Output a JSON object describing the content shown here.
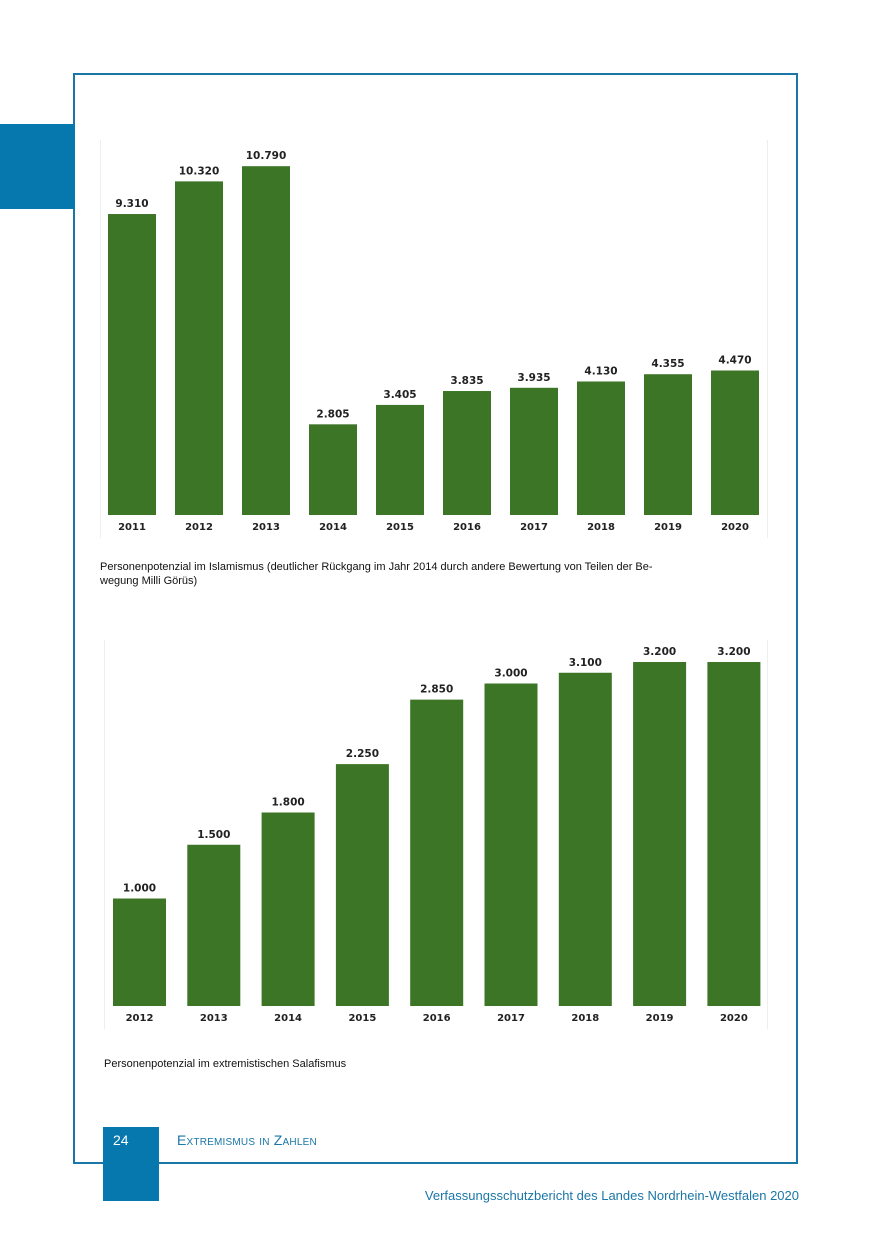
{
  "page": {
    "number": "24",
    "section_title": "Extremismus in Zahlen",
    "footer": "Verfassungsschutzbericht des Landes Nordrhein-Westfalen 2020"
  },
  "colors": {
    "bar": "#3c7526",
    "frame": "#1976a6",
    "accent_block": "#0778ae"
  },
  "chart_data": [
    {
      "type": "bar",
      "categories": [
        "2011",
        "2012",
        "2013",
        "2014",
        "2015",
        "2016",
        "2017",
        "2018",
        "2019",
        "2020"
      ],
      "values": [
        9310,
        10320,
        10790,
        2805,
        3405,
        3835,
        3935,
        4130,
        4355,
        4470
      ],
      "value_labels": [
        "9.310",
        "10.320",
        "10.790",
        "2.805",
        "3.405",
        "3.835",
        "3.935",
        "4.130",
        "4.355",
        "4.470"
      ],
      "caption": "Personenpotenzial im Islamismus (deutlicher Rückgang im Jahr 2014 durch andere Bewertung von Teilen der Be-\nwegung Milli Görüs)",
      "ylim": [
        0,
        11600
      ],
      "grid": false
    },
    {
      "type": "bar",
      "categories": [
        "2012",
        "2013",
        "2014",
        "2015",
        "2016",
        "2017",
        "2018",
        "2019",
        "2020"
      ],
      "values": [
        1000,
        1500,
        1800,
        2250,
        2850,
        3000,
        3100,
        3200,
        3200
      ],
      "value_labels": [
        "1.000",
        "1.500",
        "1.800",
        "2.250",
        "2.850",
        "3.000",
        "3.100",
        "3.200",
        "3.200"
      ],
      "caption": "Personenpotenzial im extremistischen Salafismus",
      "ylim": [
        0,
        3200
      ],
      "grid": false
    }
  ]
}
